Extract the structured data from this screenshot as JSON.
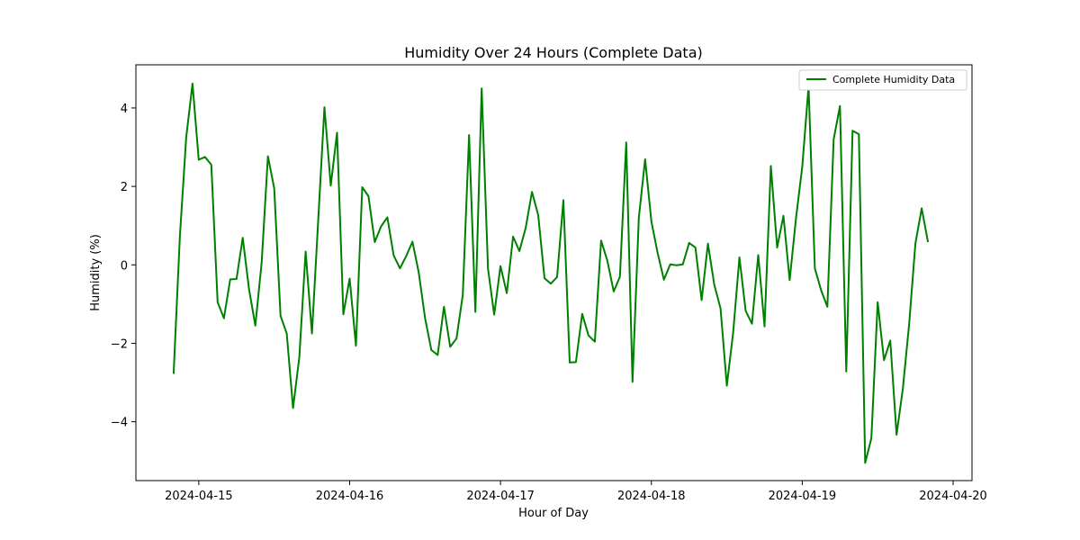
{
  "chart_data": {
    "type": "line",
    "title": "Humidity Over 24 Hours (Complete Data)",
    "xlabel": "Hour of Day",
    "ylabel": "Humidity (%)",
    "xlim": [
      "2024-04-14 14:00",
      "2024-04-20 03:00"
    ],
    "ylim": [
      -5.5,
      5.1
    ],
    "x_ticks": [
      "2024-04-15",
      "2024-04-16",
      "2024-04-17",
      "2024-04-18",
      "2024-04-19",
      "2024-04-20"
    ],
    "y_ticks": [
      -4,
      -2,
      0,
      2,
      4
    ],
    "grid": false,
    "legend_position": "top-right",
    "series": [
      {
        "name": "Complete Humidity Data",
        "color": "#008000",
        "x_start": "2024-04-14 20:00",
        "x_step": "1 hour",
        "values": [
          -2.78,
          0.74,
          3.25,
          4.62,
          2.68,
          2.75,
          2.55,
          -0.95,
          -1.36,
          -0.37,
          -0.36,
          0.69,
          -0.62,
          -1.55,
          0.05,
          2.77,
          1.95,
          -1.3,
          -1.75,
          -3.65,
          -2.35,
          0.34,
          -1.75,
          1.15,
          4.02,
          2.02,
          3.37,
          -1.26,
          -0.35,
          -2.06,
          1.98,
          1.75,
          0.58,
          0.98,
          1.21,
          0.24,
          -0.09,
          0.23,
          0.59,
          -0.2,
          -1.36,
          -2.17,
          -2.3,
          -1.07,
          -2.09,
          -1.88,
          -0.77,
          3.31,
          -1.2,
          4.5,
          -0.09,
          -1.27,
          -0.03,
          -0.72,
          0.72,
          0.35,
          0.94,
          1.86,
          1.27,
          -0.34,
          -0.48,
          -0.31,
          1.65,
          -2.49,
          -2.48,
          -1.25,
          -1.8,
          -1.96,
          0.62,
          0.1,
          -0.68,
          -0.3,
          3.12,
          -2.98,
          1.2,
          2.69,
          1.1,
          0.29,
          -0.38,
          0.01,
          -0.01,
          0.01,
          0.56,
          0.44,
          -0.9,
          0.54,
          -0.5,
          -1.11,
          -3.08,
          -1.73,
          0.19,
          -1.17,
          -1.5,
          0.25,
          -1.57,
          2.52,
          0.44,
          1.25,
          -0.39,
          1.18,
          2.5,
          4.55,
          -0.09,
          -0.65,
          -1.07,
          3.2,
          4.05,
          -2.72,
          3.42,
          3.33,
          -5.05,
          -4.42,
          -0.95,
          -2.43,
          -1.93,
          -4.33,
          -3.15,
          -1.5,
          0.54,
          1.44,
          0.58
        ]
      }
    ]
  }
}
